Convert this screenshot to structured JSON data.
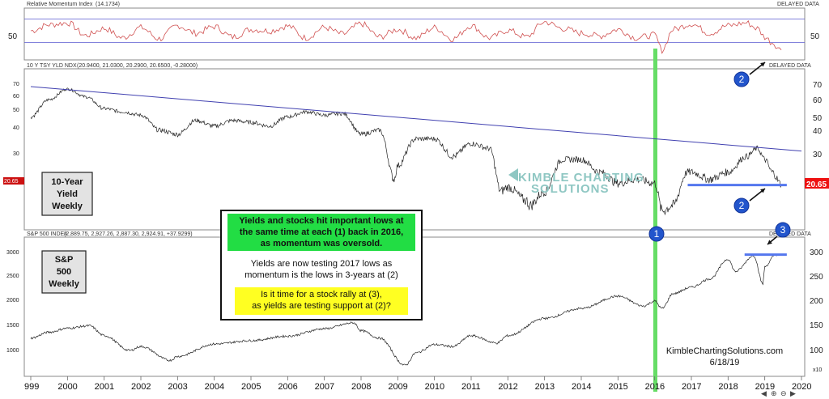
{
  "panels": {
    "rmi": {
      "title": "Relative Momentum Index",
      "value": "(14.1734)",
      "delayed": "DELAYED DATA",
      "tick": "50"
    },
    "yield": {
      "title": "10 Y TSY YLD NDX",
      "ohlc": "(20.9400, 21.0300, 20.2900, 20.6500, -0.28000)",
      "delayed": "DELAYED DATA",
      "ticks": [
        "70",
        "60",
        "50",
        "40",
        "30"
      ],
      "last": "20.65",
      "label_lines": [
        "10-Year",
        "Yield",
        "Weekly"
      ]
    },
    "spx": {
      "title": "S&P 500 INDEX",
      "ohlc": "(2,889.75, 2,927.26, 2,887.30, 2,924.91, +37.9299)",
      "delayed": "DELAYED DATA",
      "ticks_left": [
        "3000",
        "2500",
        "2000",
        "1500",
        "1000"
      ],
      "ticks_right": [
        "300",
        "250",
        "200",
        "150",
        "100"
      ],
      "multiplier": "x10",
      "label_lines": [
        "S&P",
        "500",
        "Weekly"
      ]
    }
  },
  "years": [
    "999",
    "2000",
    "2001",
    "2002",
    "2003",
    "2004",
    "2005",
    "2006",
    "2007",
    "2008",
    "2009",
    "2010",
    "2011",
    "2012",
    "2013",
    "2014",
    "2015",
    "2016",
    "2017",
    "2018",
    "2019",
    "2020"
  ],
  "annotation": {
    "box1": [
      "Yields and stocks hit important lows at",
      "the same time at each (1) back in 2016,",
      "as momentum was oversold."
    ],
    "text2": [
      "Yields are now testing 2017 lows as",
      "momentum is the lows in 3-years at (2)"
    ],
    "box3": [
      "Is it time for a stock rally at (3),",
      "as yields are testing support at (2)?"
    ]
  },
  "markers": [
    "1",
    "2",
    "2",
    "3"
  ],
  "watermark": [
    "KIMBLE CHARTING",
    "SOLUTIONS"
  ],
  "credit": [
    "KimbleChartingSolutions.com",
    "6/18/19"
  ],
  "colors": {
    "rmi_line": "#d05050",
    "band": "#5a5ad0",
    "trend": "#4040b0",
    "highlight": "#66dd66",
    "marker": "#2255cc",
    "support": "#5577ee",
    "box_green": "#22dd44",
    "box_yellow": "#ffff22"
  },
  "chart_data": [
    {
      "type": "line",
      "title": "Relative Momentum Index",
      "x": [
        1999.0,
        1999.5,
        2000.0,
        2000.5,
        2001.0,
        2001.5,
        2002.0,
        2002.5,
        2003.0,
        2003.5,
        2004.0,
        2004.5,
        2005.0,
        2005.5,
        2006.0,
        2006.5,
        2007.0,
        2007.5,
        2008.0,
        2008.5,
        2009.0,
        2009.5,
        2010.0,
        2010.5,
        2011.0,
        2011.5,
        2012.0,
        2012.5,
        2013.0,
        2013.5,
        2014.0,
        2014.5,
        2015.0,
        2015.5,
        2016.0,
        2016.2,
        2016.5,
        2017.0,
        2017.5,
        2018.0,
        2018.5,
        2018.8,
        2019.0,
        2019.2,
        2019.45
      ],
      "values": [
        55,
        68,
        72,
        45,
        60,
        40,
        62,
        38,
        66,
        50,
        64,
        42,
        58,
        55,
        65,
        40,
        62,
        48,
        70,
        42,
        58,
        40,
        62,
        38,
        66,
        40,
        56,
        42,
        74,
        60,
        50,
        44,
        58,
        40,
        46,
        14,
        58,
        70,
        50,
        66,
        72,
        60,
        42,
        30,
        14.17
      ],
      "ytick": 50
    },
    {
      "type": "line",
      "title": "10 Y TSY YLD NDX",
      "x": [
        1999.0,
        1999.5,
        2000.0,
        2000.5,
        2001.0,
        2001.5,
        2002.0,
        2002.5,
        2003.0,
        2003.5,
        2004.0,
        2004.5,
        2005.0,
        2005.5,
        2006.0,
        2006.5,
        2007.0,
        2007.5,
        2008.0,
        2008.5,
        2008.9,
        2009.0,
        2009.5,
        2010.0,
        2010.5,
        2011.0,
        2011.5,
        2011.8,
        2012.0,
        2012.5,
        2012.6,
        2013.0,
        2013.5,
        2014.0,
        2014.5,
        2015.0,
        2015.5,
        2016.0,
        2016.2,
        2016.5,
        2016.9,
        2017.0,
        2017.5,
        2018.0,
        2018.5,
        2018.8,
        2019.0,
        2019.2,
        2019.45
      ],
      "values": [
        47,
        58,
        66,
        60,
        52,
        50,
        48,
        40,
        38,
        45,
        42,
        45,
        44,
        42,
        47,
        50,
        48,
        49,
        38,
        40,
        22,
        26,
        36,
        36,
        29,
        34,
        32,
        19,
        20,
        17,
        16,
        19,
        28,
        28,
        24,
        21,
        22,
        21,
        15,
        16,
        24,
        24,
        22,
        24,
        29,
        32,
        28,
        24,
        20.65
      ],
      "trendline": {
        "x": [
          1999.0,
          2020.0
        ],
        "y": [
          68,
          31
        ]
      },
      "support": 20.5,
      "yticks": [
        30,
        40,
        50,
        60,
        70
      ]
    },
    {
      "type": "line",
      "title": "S&P 500 INDEX",
      "x": [
        1999.0,
        1999.5,
        2000.0,
        2000.6,
        2001.0,
        2001.7,
        2002.0,
        2002.8,
        2003.0,
        2004.0,
        2005.0,
        2006.0,
        2007.0,
        2007.8,
        2008.0,
        2008.5,
        2009.2,
        2009.5,
        2010.0,
        2010.5,
        2011.0,
        2011.7,
        2012.0,
        2013.0,
        2014.0,
        2015.0,
        2015.7,
        2016.0,
        2016.2,
        2016.5,
        2017.0,
        2017.5,
        2018.0,
        2018.2,
        2018.7,
        2018.95,
        2019.0,
        2019.3,
        2019.45
      ],
      "values": [
        1250,
        1370,
        1450,
        1500,
        1300,
        1000,
        1080,
        800,
        880,
        1130,
        1200,
        1290,
        1440,
        1560,
        1400,
        1250,
        700,
        950,
        1120,
        1080,
        1300,
        1150,
        1300,
        1650,
        1850,
        2100,
        1900,
        2000,
        1850,
        2150,
        2280,
        2450,
        2850,
        2600,
        2920,
        2350,
        2700,
        2940,
        2925
      ],
      "resistance": 2940,
      "yticks": [
        1000,
        1500,
        2000,
        2500,
        3000
      ]
    }
  ]
}
